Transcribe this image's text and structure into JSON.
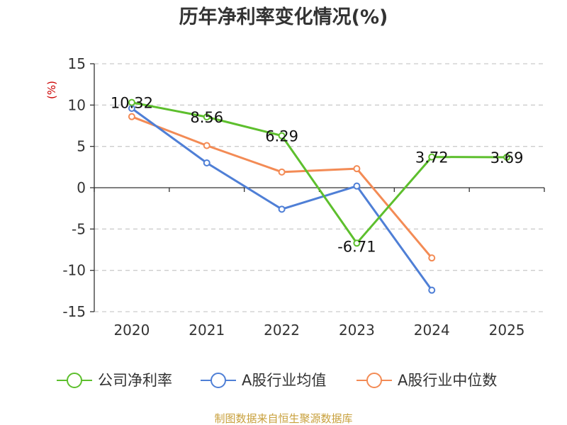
{
  "chart_data": {
    "type": "line",
    "title": "历年净利率变化情况(%)",
    "ylabel": "(%)",
    "categories": [
      "2020",
      "2021",
      "2022",
      "2023",
      "2024",
      "2025"
    ],
    "ylim": [
      -15,
      15
    ],
    "yticks": [
      15,
      10,
      5,
      0,
      -5,
      -10,
      -15
    ],
    "grid": true,
    "legend_position": "bottom",
    "series": [
      {
        "name": "公司净利率",
        "color": "#5dbf2d",
        "values": [
          10.32,
          8.56,
          6.29,
          -6.71,
          3.72,
          3.69
        ],
        "labels": [
          "10.32",
          "8.56",
          "6.29",
          "-6.71",
          "3.72",
          "3.69"
        ]
      },
      {
        "name": "A股行业均值",
        "color": "#4f7fd6",
        "values": [
          9.6,
          3.0,
          -2.6,
          0.2,
          -12.4,
          null
        ]
      },
      {
        "name": "A股行业中位数",
        "color": "#f38b55",
        "values": [
          8.6,
          5.1,
          1.9,
          2.3,
          -8.5,
          null
        ]
      }
    ],
    "source": "制图数据来自恒生聚源数据库"
  }
}
